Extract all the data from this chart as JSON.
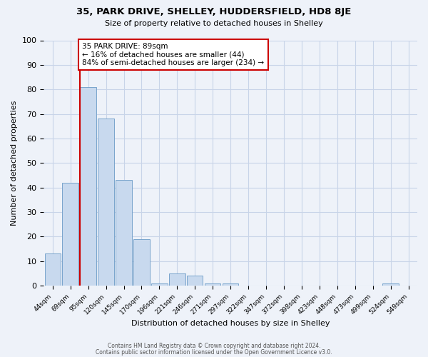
{
  "title1": "35, PARK DRIVE, SHELLEY, HUDDERSFIELD, HD8 8JE",
  "title2": "Size of property relative to detached houses in Shelley",
  "xlabel": "Distribution of detached houses by size in Shelley",
  "ylabel": "Number of detached properties",
  "bar_labels": [
    "44sqm",
    "69sqm",
    "95sqm",
    "120sqm",
    "145sqm",
    "170sqm",
    "196sqm",
    "221sqm",
    "246sqm",
    "271sqm",
    "297sqm",
    "322sqm",
    "347sqm",
    "372sqm",
    "398sqm",
    "423sqm",
    "448sqm",
    "473sqm",
    "499sqm",
    "524sqm",
    "549sqm"
  ],
  "bar_heights": [
    13,
    42,
    81,
    68,
    43,
    19,
    1,
    5,
    4,
    1,
    1,
    0,
    0,
    0,
    0,
    0,
    0,
    0,
    0,
    1,
    0
  ],
  "bar_color": "#c8d9ee",
  "bar_edge_color": "#7aa4cc",
  "red_line_index": 2,
  "annotation_title": "35 PARK DRIVE: 89sqm",
  "annotation_line1": "← 16% of detached houses are smaller (44)",
  "annotation_line2": "84% of semi-detached houses are larger (234) →",
  "annotation_box_color": "#ffffff",
  "annotation_box_edge": "#cc0000",
  "red_line_color": "#cc0000",
  "ylim": [
    0,
    100
  ],
  "yticks": [
    0,
    10,
    20,
    30,
    40,
    50,
    60,
    70,
    80,
    90,
    100
  ],
  "grid_color": "#c8d4e8",
  "background_color": "#eef2f9",
  "footnote1": "Contains HM Land Registry data © Crown copyright and database right 2024.",
  "footnote2": "Contains public sector information licensed under the Open Government Licence v3.0."
}
